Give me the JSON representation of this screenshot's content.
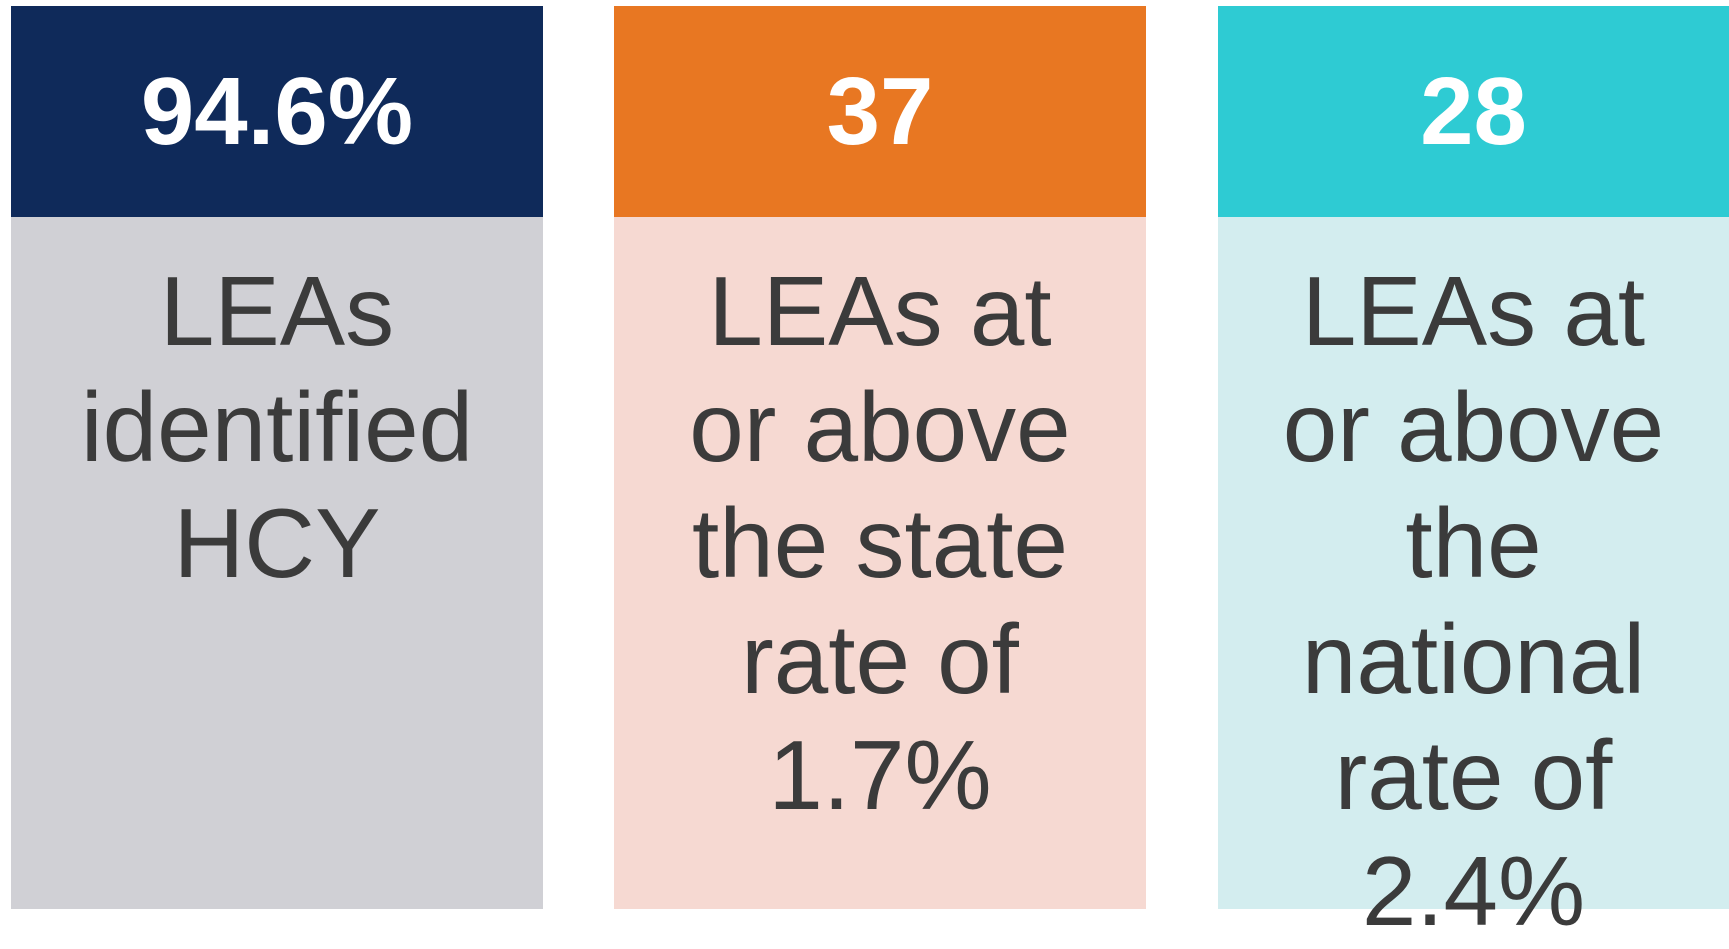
{
  "cards": [
    {
      "value": "94.6%",
      "description": "LEAs identified HCY"
    },
    {
      "value": "37",
      "description": "LEAs at or above the state rate of 1.7%"
    },
    {
      "value": "28",
      "description": "LEAs at or above the national rate of 2.4%"
    }
  ]
}
